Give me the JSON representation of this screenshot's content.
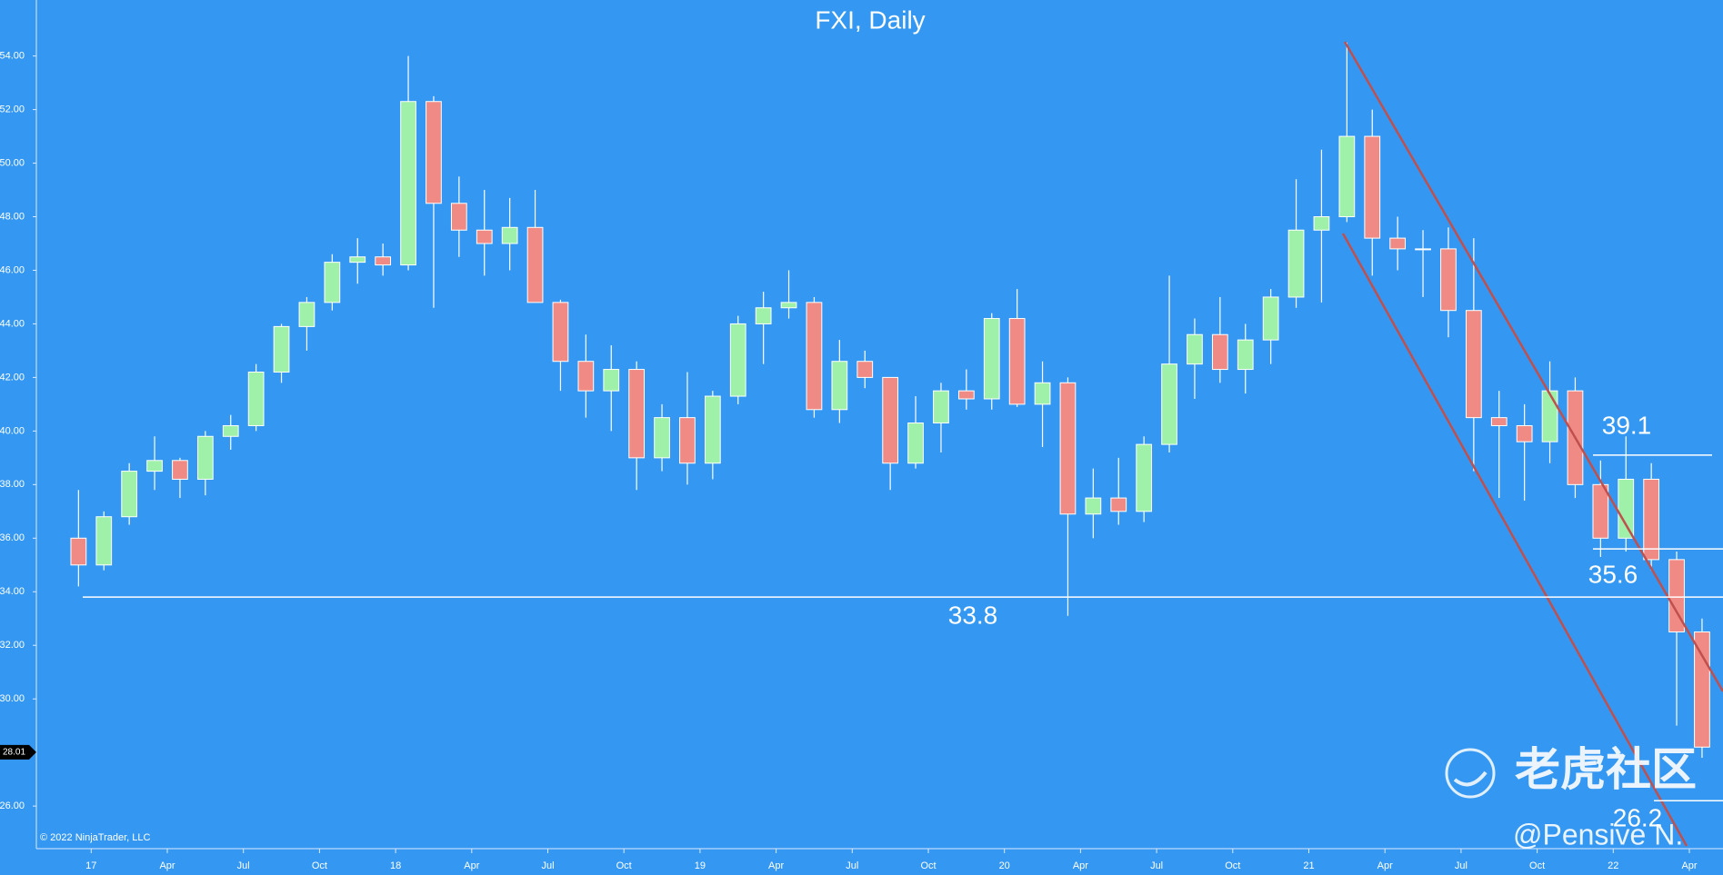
{
  "chart_data": {
    "type": "candlestick",
    "title": "FXI, Daily",
    "copyright": "© 2022 NinjaTrader, LLC",
    "watermark": "老虎社区",
    "credit": "@Pensive N.",
    "categories": [
      null,
      "17",
      null,
      null,
      "Apr",
      null,
      null,
      "Jul",
      null,
      null,
      "Oct",
      null,
      null,
      "18",
      null,
      null,
      "Apr",
      null,
      null,
      "Jul",
      null,
      null,
      "Oct",
      null,
      null,
      "19",
      null,
      null,
      "Apr",
      null,
      null,
      "Jul",
      null,
      null,
      "Oct",
      null,
      null,
      "20",
      null,
      null,
      "Apr",
      null,
      null,
      "Jul",
      null,
      null,
      "Oct",
      null,
      null,
      "21",
      null,
      null,
      "Apr",
      null,
      null,
      "Jul",
      null,
      null,
      "Oct",
      null,
      null,
      "22",
      null,
      null,
      "Apr"
    ],
    "series": [
      {
        "name": "FXI",
        "up_color": "#9ff0a8",
        "down_color": "#f08a84",
        "outline_color": "#ffffff",
        "open": [
          36.0,
          35.0,
          36.8,
          38.5,
          38.9,
          38.2,
          39.8,
          40.2,
          42.2,
          43.9,
          44.8,
          46.3,
          46.5,
          46.2,
          52.3,
          48.5,
          47.5,
          47.0,
          47.6,
          44.8,
          42.6,
          41.5,
          42.3,
          39.0,
          40.5,
          38.8,
          41.3,
          44.0,
          44.6,
          44.8,
          40.8,
          42.6,
          42.0,
          38.8,
          40.3,
          41.5,
          41.2,
          44.2,
          41.0,
          41.8,
          36.9,
          37.5,
          37.0,
          39.5,
          42.5,
          43.6,
          42.3,
          43.4,
          45.0,
          47.5,
          48.0,
          51.0,
          47.2,
          46.8,
          46.8,
          44.5,
          40.5,
          40.2,
          39.6,
          41.5,
          38.0,
          36.0,
          38.2,
          35.2,
          32.5
        ],
        "high": [
          37.8,
          37.0,
          38.8,
          39.8,
          39.0,
          40.0,
          40.6,
          42.5,
          44.0,
          45.0,
          46.6,
          47.2,
          47.0,
          54.0,
          52.5,
          49.5,
          49.0,
          48.7,
          49.0,
          44.9,
          43.6,
          43.2,
          42.6,
          41.0,
          42.2,
          41.5,
          44.3,
          45.2,
          46.0,
          45.0,
          43.4,
          43.0,
          42.0,
          41.3,
          41.8,
          42.3,
          44.4,
          45.3,
          42.6,
          42.0,
          38.6,
          39.0,
          39.8,
          45.8,
          44.2,
          45.0,
          44.0,
          45.3,
          49.4,
          50.5,
          54.5,
          52.0,
          48.0,
          47.5,
          47.6,
          47.2,
          41.5,
          41.0,
          42.6,
          42.0,
          38.9,
          39.8,
          38.8,
          35.5,
          33.0
        ],
        "low": [
          34.2,
          34.8,
          36.5,
          37.8,
          37.5,
          37.6,
          39.3,
          40.0,
          41.8,
          43.0,
          44.5,
          45.5,
          45.8,
          46.0,
          44.6,
          46.5,
          45.8,
          46.0,
          44.8,
          41.5,
          40.5,
          40.0,
          37.8,
          38.5,
          38.0,
          38.2,
          41.0,
          42.5,
          44.2,
          40.5,
          40.3,
          41.6,
          37.8,
          38.6,
          39.2,
          40.8,
          40.8,
          40.9,
          39.4,
          33.1,
          36.0,
          36.5,
          36.6,
          39.2,
          41.2,
          41.8,
          41.4,
          42.5,
          44.6,
          44.8,
          47.8,
          45.8,
          46.0,
          45.0,
          43.5,
          38.5,
          37.5,
          37.4,
          38.8,
          37.5,
          35.3,
          35.5,
          34.8,
          29.0,
          27.8
        ],
        "close": [
          35.0,
          36.8,
          38.5,
          38.9,
          38.2,
          39.8,
          40.2,
          42.2,
          43.9,
          44.8,
          46.3,
          46.5,
          46.2,
          52.3,
          48.5,
          47.5,
          47.0,
          47.6,
          44.8,
          42.6,
          41.5,
          42.3,
          39.0,
          40.5,
          38.8,
          41.3,
          44.0,
          44.6,
          44.8,
          40.8,
          42.6,
          42.0,
          38.8,
          40.3,
          41.5,
          41.2,
          44.2,
          41.0,
          41.8,
          36.9,
          37.5,
          37.0,
          39.5,
          42.5,
          43.6,
          42.3,
          43.4,
          45.0,
          47.5,
          48.0,
          51.0,
          47.2,
          46.8,
          46.8,
          44.5,
          40.5,
          40.2,
          39.6,
          41.5,
          38.0,
          36.0,
          38.2,
          35.2,
          32.5,
          28.2
        ]
      }
    ],
    "ylim": [
      24.41,
      56.09
    ],
    "yticks": [
      {
        "value": 26,
        "label": "26.00"
      },
      {
        "value": 28,
        "label": "28.00"
      },
      {
        "value": 30,
        "label": "30.00"
      },
      {
        "value": 32,
        "label": "32.00"
      },
      {
        "value": 34,
        "label": "34.00"
      },
      {
        "value": 36,
        "label": "36.00"
      },
      {
        "value": 38,
        "label": "38.00"
      },
      {
        "value": 40,
        "label": "40.00"
      },
      {
        "value": 42,
        "label": "42.00"
      },
      {
        "value": 44,
        "label": "44.00"
      },
      {
        "value": 46,
        "label": "46.00"
      },
      {
        "value": 48,
        "label": "48.00"
      },
      {
        "value": 50,
        "label": "50.00"
      },
      {
        "value": 52,
        "label": "52.00"
      },
      {
        "value": 54,
        "label": "54.00"
      }
    ],
    "last_price": 28.01,
    "levels": [
      33.8,
      39.1,
      35.6,
      26.2
    ],
    "level_color": "#ffffff",
    "grid": false
  }
}
